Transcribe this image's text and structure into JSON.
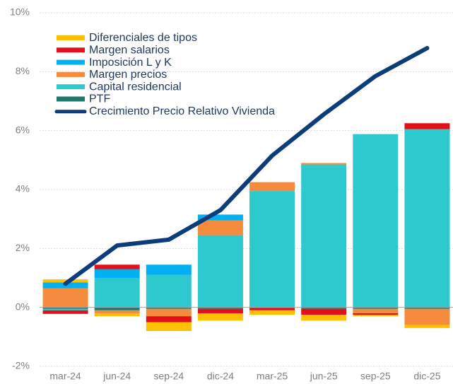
{
  "chart_data": {
    "type": "bar",
    "categories": [
      "mar-24",
      "jun-24",
      "sep-24",
      "dic-24",
      "mar-25",
      "jun-25",
      "sep-25",
      "dic-25"
    ],
    "series": [
      {
        "name": "Diferenciales de tipos",
        "color": "#ffc000",
        "values": [
          0.1,
          -0.1,
          -0.3,
          -0.25,
          -0.15,
          -0.2,
          -0.05,
          -0.1
        ]
      },
      {
        "name": "Margen salarios",
        "color": "#e3101a",
        "values": [
          -0.12,
          0.15,
          -0.2,
          -0.15,
          -0.07,
          -0.2,
          -0.05,
          0.2
        ]
      },
      {
        "name": "Imposición L y K",
        "color": "#00b0f0",
        "values": [
          0.2,
          0.3,
          0.35,
          0.2,
          0,
          0,
          0,
          0
        ]
      },
      {
        "name": "Margen precios",
        "color": "#f58b3c",
        "values": [
          0.65,
          -0.1,
          -0.25,
          0.5,
          0.3,
          0.05,
          -0.15,
          -0.55
        ]
      },
      {
        "name": "Capital residencial",
        "color": "#2ec8cf",
        "values": [
          -0.05,
          1.0,
          1.1,
          2.45,
          3.95,
          4.85,
          5.88,
          6.05
        ]
      },
      {
        "name": "PTF",
        "color": "#1f7a6e",
        "values": [
          -0.05,
          -0.1,
          -0.05,
          -0.05,
          -0.03,
          -0.05,
          -0.05,
          -0.05
        ]
      },
      {
        "name": "Crecimiento Precio Relativo Vivienda",
        "color": "#0b3d7a",
        "type": "line",
        "values": [
          0.8,
          2.1,
          2.3,
          3.3,
          5.15,
          6.55,
          7.85,
          8.8
        ]
      }
    ],
    "ylim": [
      -2,
      10
    ],
    "yticks": [
      {
        "value": -2,
        "label": "-2%"
      },
      {
        "value": 0,
        "label": "0%"
      },
      {
        "value": 2,
        "label": "2%"
      },
      {
        "value": 4,
        "label": "4%"
      },
      {
        "value": 6,
        "label": "6%"
      },
      {
        "value": 8,
        "label": "8%"
      },
      {
        "value": 10,
        "label": "10%"
      }
    ],
    "grid": true,
    "legend": "upper left"
  }
}
